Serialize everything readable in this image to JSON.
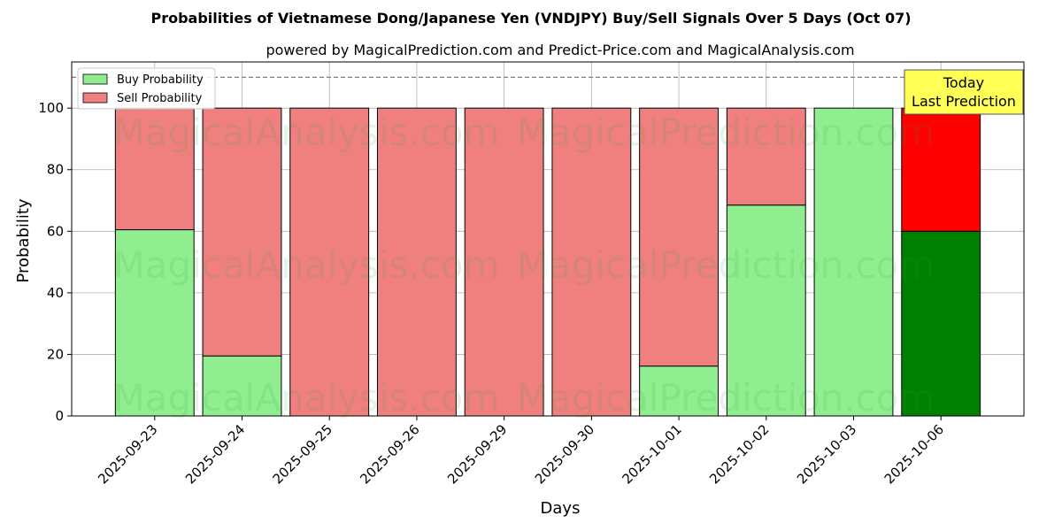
{
  "chart_data": {
    "type": "bar",
    "title": "Probabilities of Vietnamese Dong/Japanese Yen (VNDJPY) Buy/Sell Signals Over 5 Days (Oct 07)",
    "subtitle": "powered by MagicalPrediction.com and Predict-Price.com and MagicalAnalysis.com",
    "xlabel": "Days",
    "ylabel": "Probability",
    "ylim": [
      0,
      115
    ],
    "yticks": [
      0,
      20,
      40,
      60,
      80,
      100
    ],
    "threshold": 110,
    "grid": true,
    "legend_position": "top-left",
    "categories": [
      "2025-09-23",
      "2025-09-24",
      "2025-09-25",
      "2025-09-26",
      "2025-09-29",
      "2025-09-30",
      "2025-10-01",
      "2025-10-02",
      "2025-10-03",
      "2025-10-06"
    ],
    "series": [
      {
        "name": "Buy Probability",
        "color": "#90ee90",
        "values": [
          60.5,
          19.5,
          0,
          0,
          0,
          0,
          16.2,
          68.5,
          100,
          60
        ]
      },
      {
        "name": "Sell Probability",
        "color": "#f08080",
        "values": [
          39.5,
          80.5,
          100,
          100,
          100,
          100,
          83.8,
          31.5,
          0,
          40
        ]
      }
    ],
    "highlight": {
      "index": 9,
      "buy_color": "#008000",
      "sell_color": "#ff0000"
    },
    "annotation": {
      "line1": "Today",
      "line2": "Last Prediction",
      "background": "#ffff55"
    },
    "watermarks": [
      "MagicalAnalysis.com",
      "MagicalPrediction.com"
    ]
  }
}
